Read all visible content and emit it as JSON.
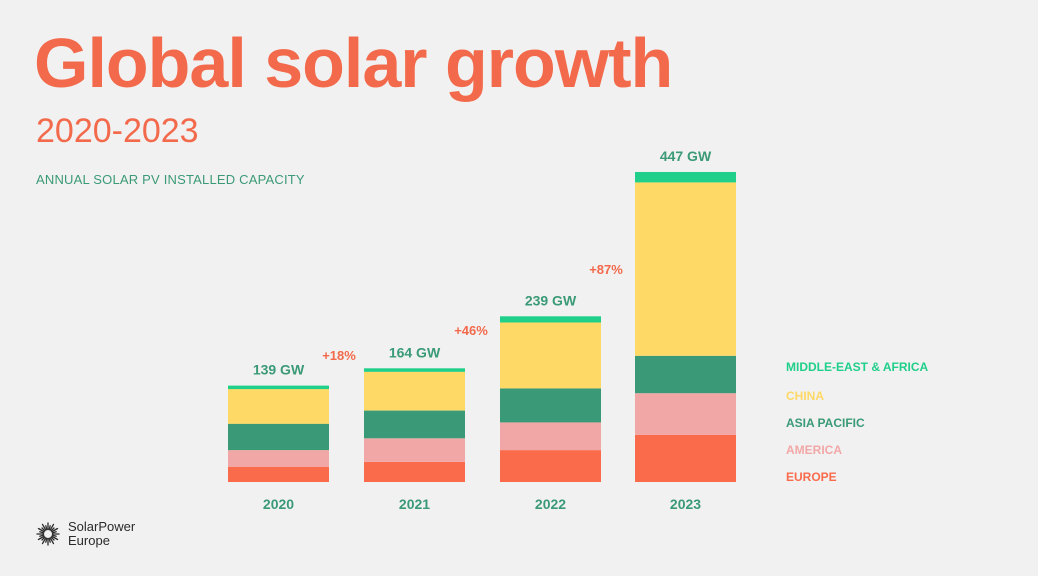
{
  "header": {
    "title": "Global solar growth",
    "subtitle": "2020-2023",
    "caption": "ANNUAL SOLAR PV INSTALLED CAPACITY"
  },
  "logo": {
    "line1": "SolarPower",
    "line2": "Europe",
    "icon": "sunburst-icon"
  },
  "colors": {
    "accent": "#f26a4b",
    "teal": "#3a9a78",
    "middle_east_africa": "#1fcf8a",
    "china": "#fed965",
    "asia_pacific": "#3a9a78",
    "america": "#f2a7a7",
    "europe": "#f96b4b"
  },
  "chart_data": {
    "type": "bar",
    "stacked": true,
    "categories": [
      "2020",
      "2021",
      "2022",
      "2023"
    ],
    "totals": [
      139,
      164,
      239,
      447
    ],
    "total_labels": [
      "139 GW",
      "164 GW",
      "239 GW",
      "447 GW"
    ],
    "growth_labels": [
      "+18%",
      "+46%",
      "+87%"
    ],
    "series": [
      {
        "name": "EUROPE",
        "color": "#f96b4b",
        "values": [
          22,
          29,
          46,
          68
        ]
      },
      {
        "name": "AMERICA",
        "color": "#f2a7a7",
        "values": [
          24,
          34,
          40,
          60
        ]
      },
      {
        "name": "ASIA PACIFIC",
        "color": "#3a9a78",
        "values": [
          38,
          40,
          49,
          54
        ]
      },
      {
        "name": "CHINA",
        "color": "#fed965",
        "values": [
          50,
          56,
          95,
          250
        ]
      },
      {
        "name": "MIDDLE-EAST & AFRICA",
        "color": "#1fcf8a",
        "values": [
          5,
          5,
          9,
          15
        ]
      }
    ],
    "legend_position": "right",
    "grid": false
  }
}
